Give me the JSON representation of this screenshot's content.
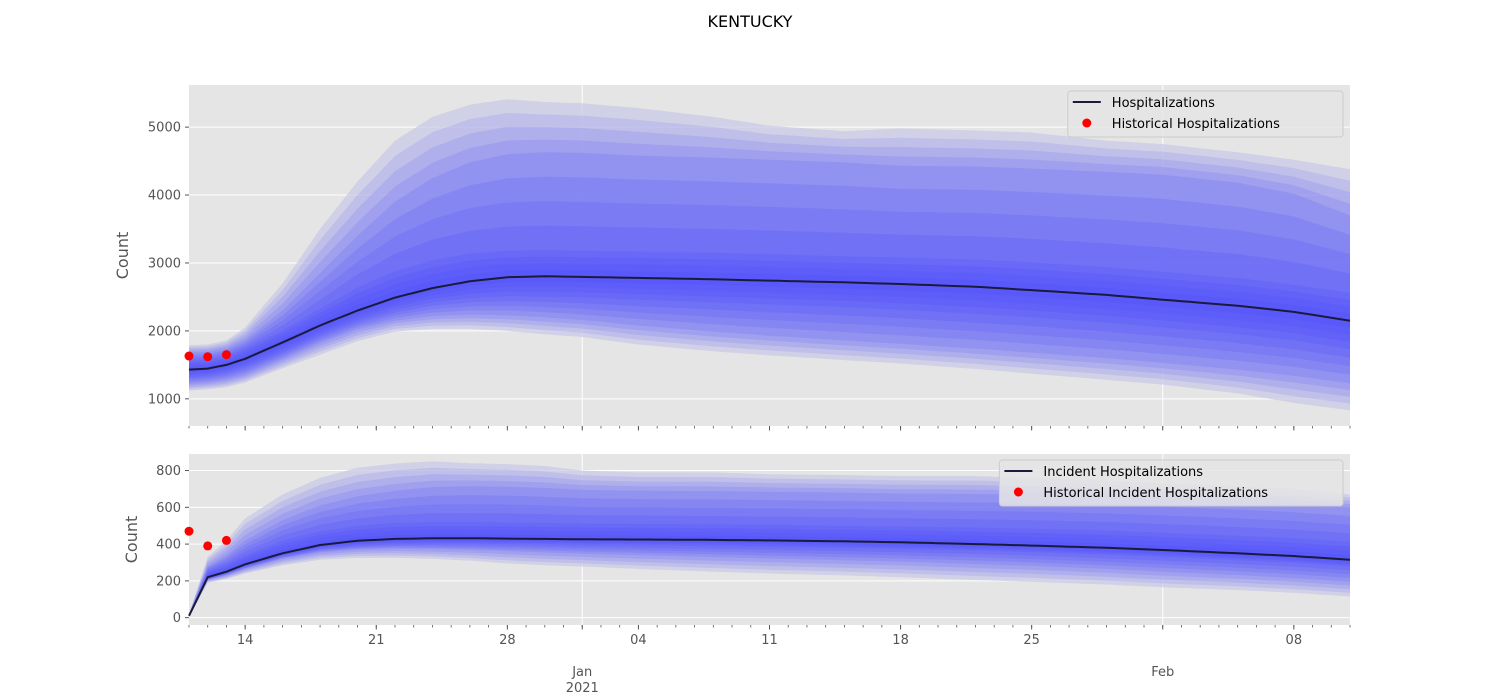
{
  "figure": {
    "title": "KENTUCKY"
  },
  "colors": {
    "band": "#4c4cff",
    "band_outer": "#c8c8e6",
    "median": "#1a1a3a",
    "historical": "#ff0000",
    "panel_bg": "#e5e5e5",
    "grid": "#ffffff"
  },
  "x_ticks": {
    "major": [
      {
        "date": "2021-01-01",
        "label": "Jan",
        "sublabel": "2021"
      },
      {
        "date": "2021-02-01",
        "label": "Feb",
        "sublabel": ""
      }
    ],
    "minor_labeled": [
      {
        "date": "2020-12-14",
        "label": "14"
      },
      {
        "date": "2020-12-21",
        "label": "21"
      },
      {
        "date": "2020-12-28",
        "label": "28"
      },
      {
        "date": "2021-01-04",
        "label": "04"
      },
      {
        "date": "2021-01-11",
        "label": "11"
      },
      {
        "date": "2021-01-18",
        "label": "18"
      },
      {
        "date": "2021-01-25",
        "label": "25"
      },
      {
        "date": "2021-02-08",
        "label": "08"
      }
    ]
  },
  "chart_data": [
    {
      "type": "area",
      "ylabel": "Count",
      "xlim": [
        "2020-12-11",
        "2021-02-11"
      ],
      "ylim": [
        600,
        5620
      ],
      "yticks": [
        1000,
        2000,
        3000,
        4000,
        5000
      ],
      "grid": true,
      "legend_position": "top-right",
      "legend": [
        "Hospitalizations",
        "Historical Hospitalizations"
      ],
      "x": [
        "2020-12-11",
        "2020-12-12",
        "2020-12-13",
        "2020-12-14",
        "2020-12-16",
        "2020-12-18",
        "2020-12-20",
        "2020-12-22",
        "2020-12-24",
        "2020-12-26",
        "2020-12-28",
        "2020-12-30",
        "2021-01-01",
        "2021-01-04",
        "2021-01-08",
        "2021-01-11",
        "2021-01-15",
        "2021-01-18",
        "2021-01-22",
        "2021-01-25",
        "2021-01-29",
        "2021-02-01",
        "2021-02-05",
        "2021-02-08",
        "2021-02-11"
      ],
      "median": [
        1430,
        1445,
        1500,
        1590,
        1830,
        2080,
        2300,
        2490,
        2630,
        2730,
        2790,
        2805,
        2795,
        2780,
        2760,
        2740,
        2715,
        2690,
        2650,
        2600,
        2530,
        2460,
        2370,
        2280,
        2150
      ],
      "bands": [
        {
          "level": "p2.5-p97.5",
          "lower": [
            1120,
            1140,
            1170,
            1240,
            1450,
            1650,
            1850,
            1990,
            2030,
            2030,
            2000,
            1950,
            1910,
            1800,
            1700,
            1640,
            1570,
            1520,
            1440,
            1370,
            1280,
            1210,
            1080,
            940,
            830
          ],
          "upper": [
            1790,
            1800,
            1860,
            2050,
            2700,
            3500,
            4200,
            4800,
            5150,
            5330,
            5410,
            5370,
            5350,
            5280,
            5150,
            5020,
            4940,
            4980,
            4950,
            4920,
            4800,
            4750,
            4630,
            4520,
            4380
          ]
        },
        {
          "level": "p10-p90",
          "lower": [
            1220,
            1240,
            1280,
            1350,
            1580,
            1820,
            2020,
            2150,
            2220,
            2240,
            2230,
            2200,
            2160,
            2080,
            1990,
            1930,
            1860,
            1810,
            1740,
            1680,
            1600,
            1530,
            1430,
            1340,
            1230
          ],
          "upper": [
            1680,
            1690,
            1740,
            1870,
            2300,
            2850,
            3400,
            3900,
            4250,
            4480,
            4600,
            4630,
            4620,
            4580,
            4550,
            4520,
            4480,
            4430,
            4420,
            4390,
            4340,
            4300,
            4180,
            4020,
            3700
          ]
        },
        {
          "level": "p25-p75",
          "lower": [
            1320,
            1340,
            1390,
            1470,
            1690,
            1940,
            2150,
            2310,
            2420,
            2480,
            2510,
            2500,
            2490,
            2460,
            2420,
            2390,
            2350,
            2310,
            2250,
            2200,
            2120,
            2050,
            1950,
            1860,
            1730
          ],
          "upper": [
            1560,
            1570,
            1620,
            1730,
            2010,
            2330,
            2640,
            2880,
            3040,
            3140,
            3180,
            3190,
            3180,
            3170,
            3150,
            3130,
            3100,
            3080,
            3050,
            3010,
            2940,
            2870,
            2780,
            2680,
            2560
          ]
        }
      ],
      "historical": {
        "x": [
          "2020-12-11",
          "2020-12-12",
          "2020-12-13"
        ],
        "values": [
          1630,
          1620,
          1650
        ]
      }
    },
    {
      "type": "area",
      "ylabel": "Count",
      "xlim": [
        "2020-12-11",
        "2021-02-11"
      ],
      "ylim": [
        -40,
        890
      ],
      "yticks": [
        0,
        200,
        400,
        600,
        800
      ],
      "grid": true,
      "legend_position": "top-right",
      "legend": [
        "Incident Hospitalizations",
        "Historical Incident Hospitalizations"
      ],
      "x": [
        "2020-12-11",
        "2020-12-12",
        "2020-12-13",
        "2020-12-14",
        "2020-12-16",
        "2020-12-18",
        "2020-12-20",
        "2020-12-22",
        "2020-12-24",
        "2020-12-26",
        "2020-12-28",
        "2020-12-30",
        "2021-01-01",
        "2021-01-04",
        "2021-01-08",
        "2021-01-11",
        "2021-01-15",
        "2021-01-18",
        "2021-01-22",
        "2021-01-25",
        "2021-01-29",
        "2021-02-01",
        "2021-02-05",
        "2021-02-08",
        "2021-02-11"
      ],
      "median": [
        10,
        220,
        250,
        290,
        350,
        395,
        418,
        428,
        432,
        432,
        430,
        428,
        426,
        425,
        423,
        420,
        415,
        410,
        400,
        392,
        380,
        368,
        350,
        335,
        315
      ],
      "bands": [
        {
          "level": "p2.5-p97.5",
          "lower": [
            5,
            190,
            210,
            240,
            285,
            315,
            325,
            325,
            320,
            310,
            295,
            285,
            278,
            265,
            250,
            240,
            230,
            220,
            205,
            195,
            180,
            165,
            150,
            135,
            115
          ],
          "upper": [
            20,
            330,
            420,
            540,
            670,
            760,
            815,
            838,
            850,
            840,
            835,
            825,
            800,
            790,
            790,
            780,
            775,
            770,
            770,
            760,
            745,
            730,
            715,
            700,
            670
          ]
        },
        {
          "level": "p10-p90",
          "lower": [
            8,
            205,
            230,
            265,
            320,
            355,
            370,
            375,
            372,
            368,
            362,
            355,
            348,
            340,
            330,
            322,
            312,
            305,
            292,
            282,
            265,
            250,
            232,
            215,
            195
          ],
          "upper": [
            15,
            280,
            340,
            420,
            530,
            610,
            660,
            690,
            710,
            715,
            712,
            705,
            695,
            690,
            688,
            684,
            680,
            675,
            672,
            668,
            660,
            650,
            635,
            620,
            600
          ]
        },
        {
          "level": "p25-p75",
          "lower": [
            9,
            212,
            240,
            278,
            335,
            375,
            392,
            400,
            402,
            402,
            400,
            398,
            395,
            392,
            388,
            384,
            378,
            373,
            364,
            356,
            342,
            330,
            312,
            298,
            278
          ],
          "upper": [
            12,
            250,
            290,
            340,
            420,
            470,
            500,
            515,
            520,
            520,
            518,
            515,
            512,
            510,
            508,
            505,
            500,
            496,
            490,
            484,
            474,
            462,
            446,
            432,
            412
          ]
        }
      ],
      "historical": {
        "x": [
          "2020-12-11",
          "2020-12-12",
          "2020-12-13"
        ],
        "values": [
          470,
          390,
          420
        ]
      }
    }
  ]
}
